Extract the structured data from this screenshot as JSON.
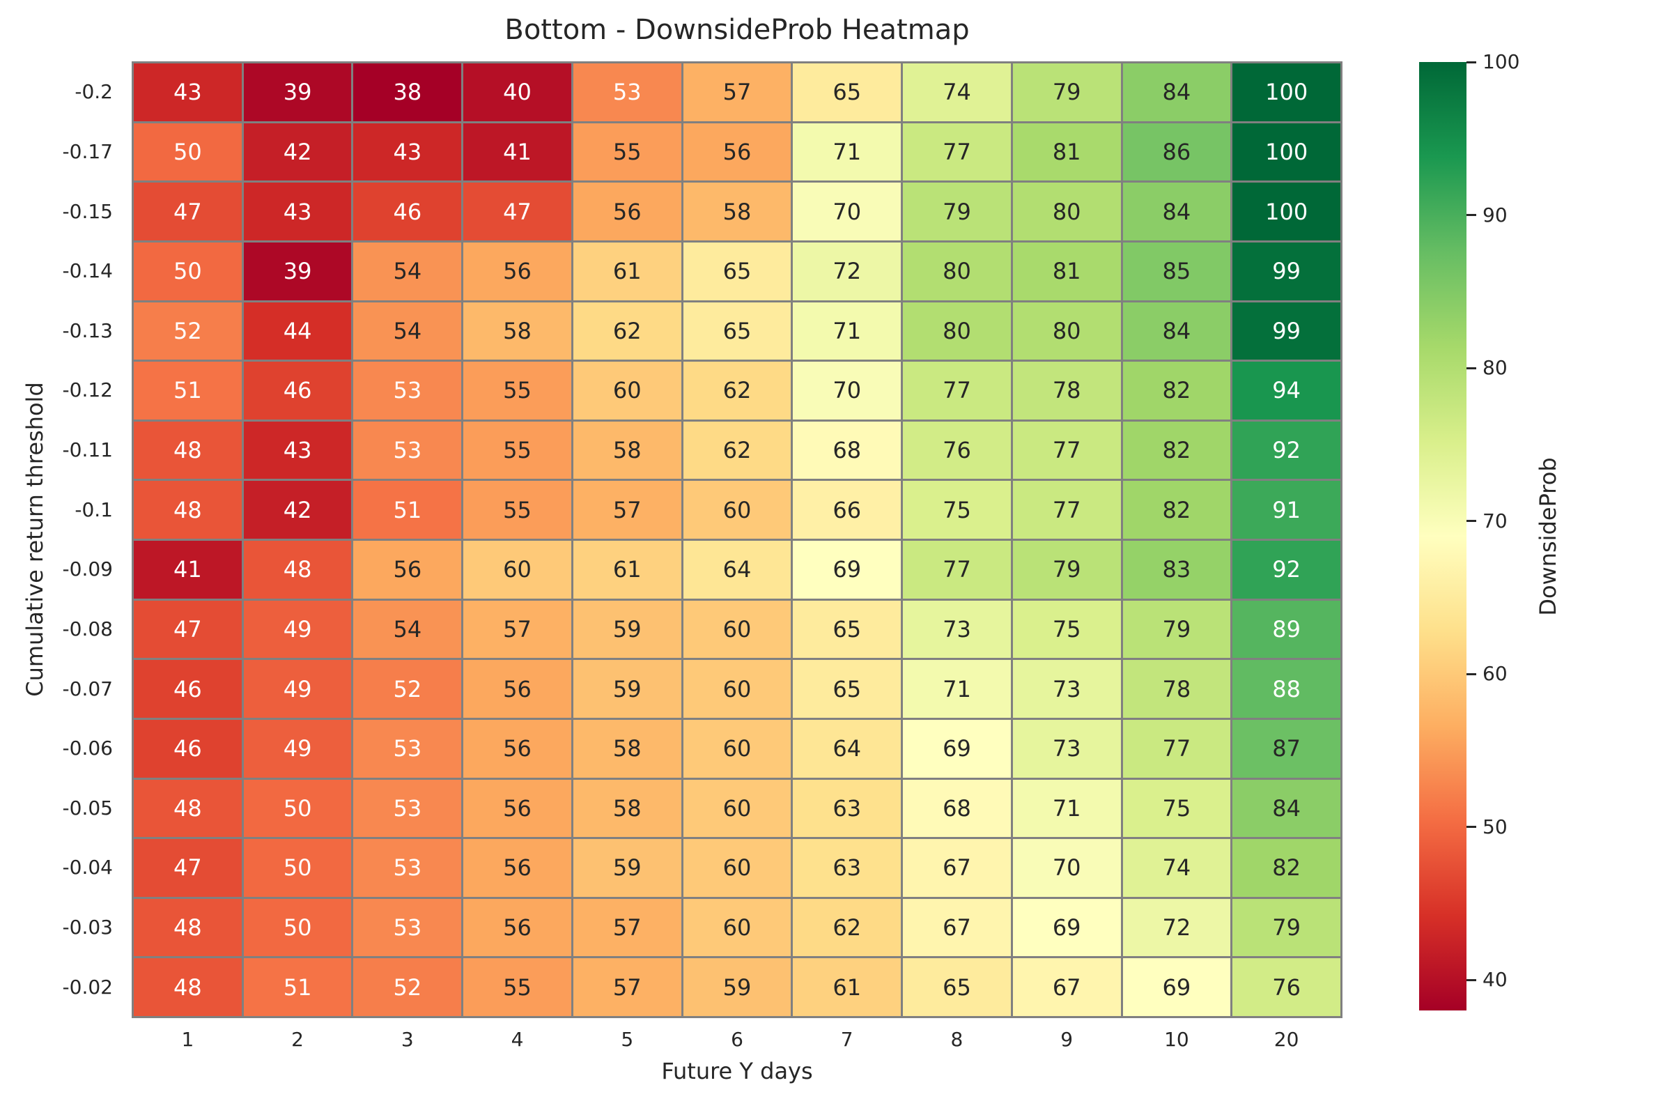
{
  "title": "Bottom - DownsideProb Heatmap",
  "chart_data": {
    "type": "heatmap",
    "title": "Bottom - DownsideProb Heatmap",
    "xlabel": "Future Y days",
    "ylabel": "Cumulative return threshold",
    "x_ticks": [
      "1",
      "2",
      "3",
      "4",
      "5",
      "6",
      "7",
      "8",
      "9",
      "10",
      "20"
    ],
    "y_ticks": [
      "-0.2",
      "-0.17",
      "-0.15",
      "-0.14",
      "-0.13",
      "-0.12",
      "-0.11",
      "-0.1",
      "-0.09",
      "-0.08",
      "-0.07",
      "-0.06",
      "-0.05",
      "-0.04",
      "-0.03",
      "-0.02"
    ],
    "values": [
      [
        43,
        39,
        38,
        40,
        53,
        57,
        65,
        74,
        79,
        84,
        100
      ],
      [
        50,
        42,
        43,
        41,
        55,
        56,
        71,
        77,
        81,
        86,
        100
      ],
      [
        47,
        43,
        46,
        47,
        56,
        58,
        70,
        79,
        80,
        84,
        100
      ],
      [
        50,
        39,
        54,
        56,
        61,
        65,
        72,
        80,
        81,
        85,
        99
      ],
      [
        52,
        44,
        54,
        58,
        62,
        65,
        71,
        80,
        80,
        84,
        99
      ],
      [
        51,
        46,
        53,
        55,
        60,
        62,
        70,
        77,
        78,
        82,
        94
      ],
      [
        48,
        43,
        53,
        55,
        58,
        62,
        68,
        76,
        77,
        82,
        92
      ],
      [
        48,
        42,
        51,
        55,
        57,
        60,
        66,
        75,
        77,
        82,
        91
      ],
      [
        41,
        48,
        56,
        60,
        61,
        64,
        69,
        77,
        79,
        83,
        92
      ],
      [
        47,
        49,
        54,
        57,
        59,
        60,
        65,
        73,
        75,
        79,
        89
      ],
      [
        46,
        49,
        52,
        56,
        59,
        60,
        65,
        71,
        73,
        78,
        88
      ],
      [
        46,
        49,
        53,
        56,
        58,
        60,
        64,
        69,
        73,
        77,
        87
      ],
      [
        48,
        50,
        53,
        56,
        58,
        60,
        63,
        68,
        71,
        75,
        84
      ],
      [
        47,
        50,
        53,
        56,
        59,
        60,
        63,
        67,
        70,
        74,
        82
      ],
      [
        48,
        50,
        53,
        56,
        57,
        60,
        62,
        67,
        69,
        72,
        79
      ],
      [
        48,
        51,
        52,
        55,
        57,
        59,
        61,
        65,
        67,
        69,
        76
      ]
    ],
    "vmin": 38,
    "vmax": 100,
    "colormap": "RdYlGn",
    "colormap_anchors": [
      "#a50026",
      "#d73027",
      "#f46d43",
      "#fdae61",
      "#fee08b",
      "#ffffbf",
      "#d9ef8b",
      "#a6d96a",
      "#66bd63",
      "#1a9850",
      "#006837"
    ],
    "grid_color": "#808080",
    "annot_dark_text": "#262626",
    "annot_light_text": "#ffffff",
    "legend_position": "right",
    "colorbar": {
      "label": "DownsideProb",
      "ticks": [
        40,
        50,
        60,
        70,
        80,
        90,
        100
      ]
    }
  }
}
